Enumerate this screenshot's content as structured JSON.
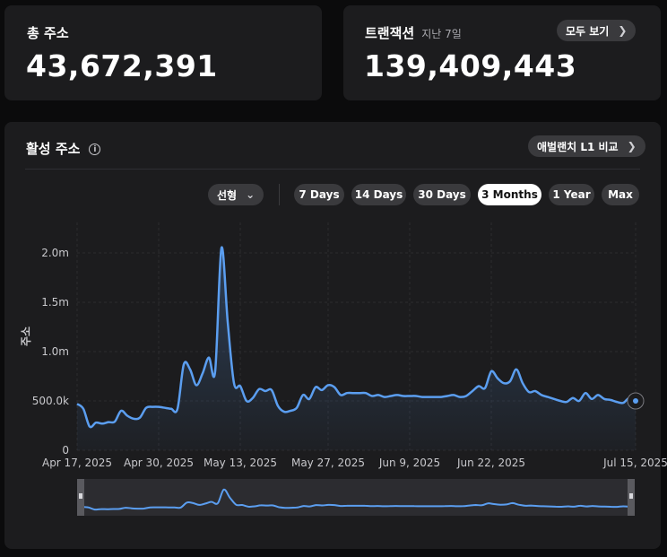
{
  "total_addresses": {
    "label": "총 주소",
    "value": "43,672,391"
  },
  "transactions": {
    "label": "트랜잭션",
    "sublabel": "지난 7일",
    "value": "139,409,443",
    "view_all": "모두 보기"
  },
  "chart_panel": {
    "title": "활성 주소",
    "compare_button": "애벌랜치 L1 비교",
    "scale_select": "선형",
    "ranges": [
      "7 Days",
      "14 Days",
      "30 Days",
      "3 Months",
      "1 Year",
      "Max"
    ],
    "active_range": "3 Months"
  },
  "colors": {
    "line": "#5b9ef0",
    "background": "#1c1c1e",
    "active_pill": "#ffffff"
  },
  "chart_data": {
    "type": "area",
    "title": "",
    "xlabel": "",
    "ylabel": "주소",
    "ylim": [
      0,
      2200000
    ],
    "y_ticks": [
      0,
      500000,
      1000000,
      1500000,
      2000000
    ],
    "y_tick_labels": [
      "0",
      "500.0k",
      "1.0m",
      "1.5m",
      "2.0m"
    ],
    "x_tick_labels": [
      "Apr 17, 2025",
      "Apr 30, 2025",
      "May 13, 2025",
      "May 27, 2025",
      "Jun 9, 2025",
      "Jun 22, 2025",
      "Jul 15, 2025"
    ],
    "x_tick_days": [
      0,
      13,
      26,
      40,
      53,
      66,
      89
    ],
    "grid": true,
    "series": [
      {
        "values": [
          470000,
          420000,
          240000,
          280000,
          270000,
          285000,
          290000,
          400000,
          350000,
          320000,
          330000,
          430000,
          440000,
          440000,
          430000,
          420000,
          420000,
          870000,
          820000,
          660000,
          780000,
          940000,
          800000,
          2050000,
          1300000,
          680000,
          650000,
          500000,
          530000,
          620000,
          600000,
          610000,
          450000,
          390000,
          400000,
          430000,
          560000,
          520000,
          640000,
          610000,
          660000,
          640000,
          560000,
          580000,
          580000,
          580000,
          580000,
          550000,
          560000,
          540000,
          550000,
          560000,
          550000,
          550000,
          550000,
          540000,
          540000,
          540000,
          540000,
          550000,
          560000,
          540000,
          550000,
          600000,
          650000,
          630000,
          800000,
          730000,
          680000,
          700000,
          820000,
          680000,
          590000,
          600000,
          560000,
          540000,
          520000,
          500000,
          490000,
          530000,
          500000,
          580000,
          520000,
          560000,
          520000,
          510000,
          490000,
          480000,
          530000,
          500000
        ]
      }
    ]
  }
}
